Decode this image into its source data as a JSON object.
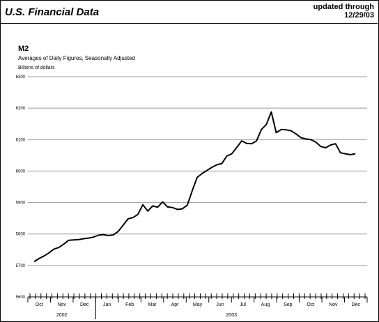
{
  "header": {
    "title": "U.S. Financial Data",
    "updated_line1": "updated through",
    "updated_line2": "12/29/03"
  },
  "chart_data": {
    "type": "line",
    "title": "M2",
    "subtitle": "Averages of Daily Figures, Seasonally Adjusted",
    "ylabel": "Billions of dollars",
    "xlabel": "",
    "ylim": [
      5600,
      6300
    ],
    "yticks": [
      5600,
      5700,
      5800,
      5900,
      6000,
      6100,
      6200,
      6300
    ],
    "grid": true,
    "months": [
      "Oct",
      "Nov",
      "Dec",
      "Jan",
      "Feb",
      "Mar",
      "Apr",
      "May",
      "Jun",
      "Jul",
      "Aug",
      "Sep",
      "Oct",
      "Nov",
      "Dec"
    ],
    "years": [
      {
        "label": "2002",
        "first_month": 0,
        "last_month": 2
      },
      {
        "label": "2003",
        "first_month": 3,
        "last_month": 14
      }
    ],
    "series": [
      {
        "values": [
          5712,
          5722,
          5730,
          5740,
          5752,
          5757,
          5768,
          5780,
          5781,
          5782,
          5785,
          5787,
          5790,
          5796,
          5798,
          5795,
          5797,
          5808,
          5828,
          5848,
          5852,
          5862,
          5893,
          5873,
          5889,
          5885,
          5902,
          5886,
          5884,
          5878,
          5880,
          5892,
          5938,
          5980,
          5992,
          6002,
          6012,
          6020,
          6024,
          6048,
          6055,
          6075,
          6096,
          6088,
          6087,
          6096,
          6132,
          6148,
          6188,
          6122,
          6132,
          6131,
          6128,
          6118,
          6106,
          6102,
          6100,
          6092,
          6078,
          6074,
          6083,
          6087,
          6058,
          6055,
          6052,
          6055
        ]
      }
    ]
  }
}
